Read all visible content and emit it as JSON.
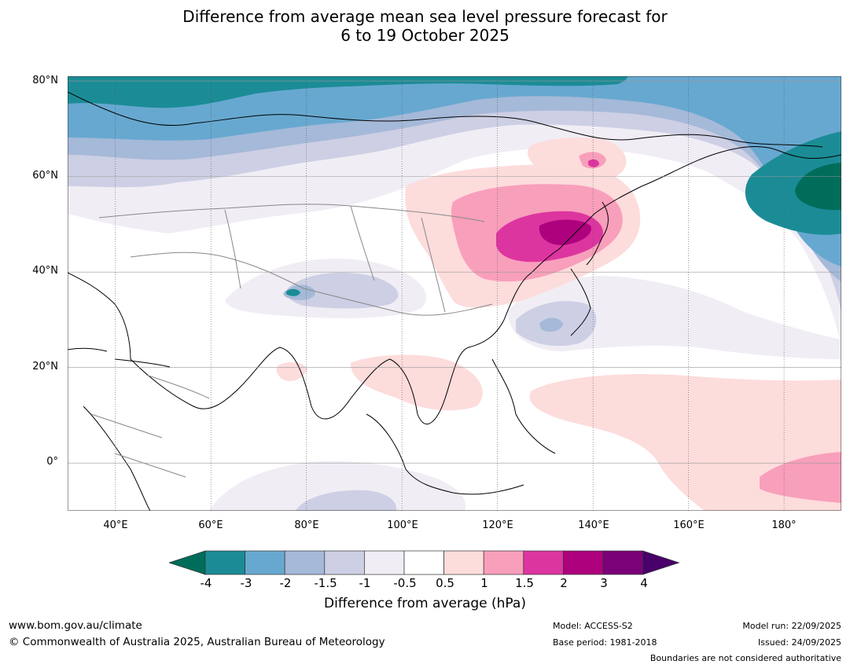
{
  "title": {
    "line1": "Difference from average mean sea level pressure forecast for",
    "line2": "6 to 19 October 2025"
  },
  "map": {
    "region": "Asia and Western Pacific",
    "lat_range": [
      -10,
      81
    ],
    "lon_range": [
      30,
      192
    ],
    "lat_ticks": [
      {
        "value": 80,
        "label": "80°N"
      },
      {
        "value": 60,
        "label": "60°N"
      },
      {
        "value": 40,
        "label": "40°N"
      },
      {
        "value": 20,
        "label": "20°N"
      },
      {
        "value": 0,
        "label": "0°"
      }
    ],
    "lon_ticks": [
      {
        "value": 40,
        "label": "40°E"
      },
      {
        "value": 60,
        "label": "60°E"
      },
      {
        "value": 80,
        "label": "80°E"
      },
      {
        "value": 100,
        "label": "100°E"
      },
      {
        "value": 120,
        "label": "120°E"
      },
      {
        "value": 140,
        "label": "140°E"
      },
      {
        "value": 160,
        "label": "160°E"
      },
      {
        "value": 180,
        "label": "180°"
      }
    ]
  },
  "colorbar": {
    "labels": [
      "-4",
      "-3",
      "-2",
      "-1.5",
      "-1",
      "-0.5",
      "0.5",
      "1",
      "1.5",
      "2",
      "3",
      "4"
    ],
    "colors": [
      "#1b8c96",
      "#67a8d0",
      "#a5b9d8",
      "#cdcfe4",
      "#f1edf5",
      "#ffffff",
      "#fddcdc",
      "#f89fbb",
      "#dd35a0",
      "#ae017e",
      "#7a0177"
    ],
    "under_color": "#006d5b",
    "over_color": "#49006a",
    "title": "Difference from average (hPa)"
  },
  "footer": {
    "url": "www.bom.gov.au/climate",
    "copyright": "© Commonwealth of Australia 2025, Australian Bureau of Meteorology",
    "model": "Model: ACCESS-S2",
    "base_period": "Base period: 1981-2018",
    "model_run": "Model run: 22/09/2025",
    "issued": "Issued: 24/09/2025",
    "disclaimer": "Boundaries are not considered authoritative"
  }
}
